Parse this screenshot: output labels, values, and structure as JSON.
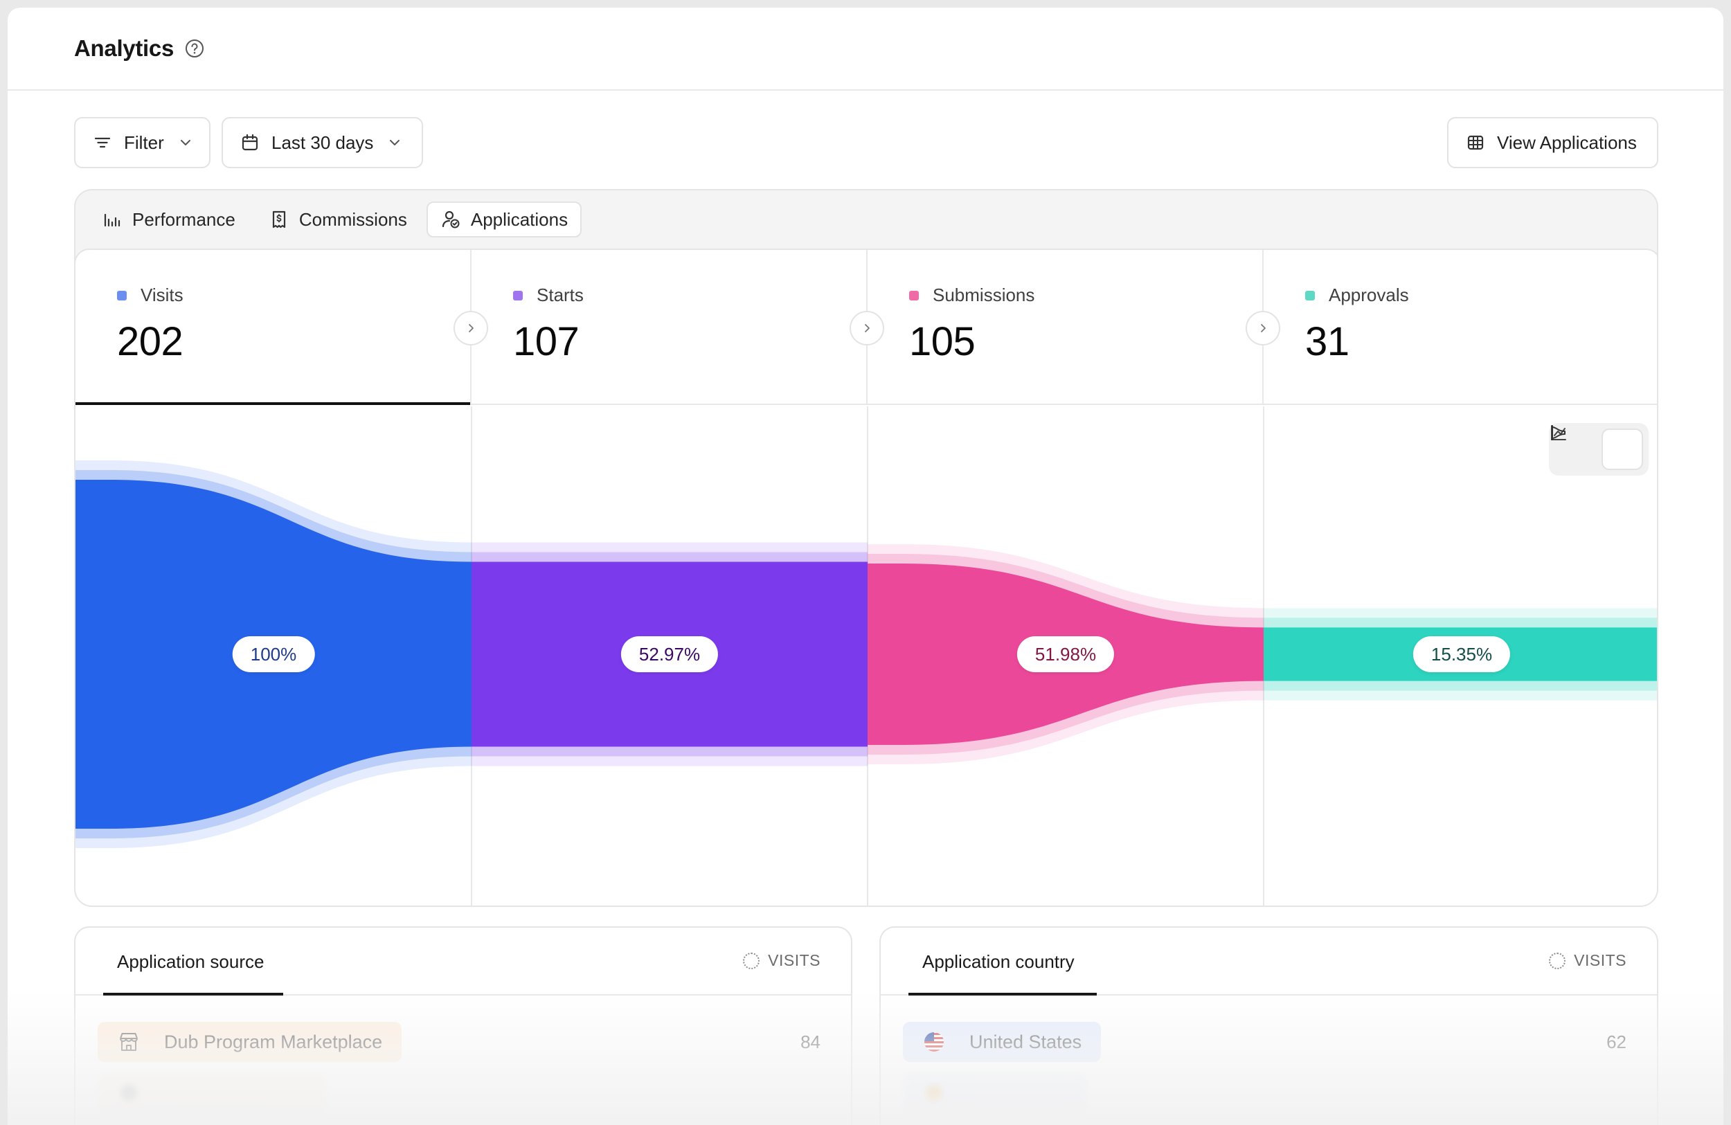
{
  "header": {
    "title": "Analytics"
  },
  "toolbar": {
    "filter_label": "Filter",
    "date_label": "Last 30 days",
    "view_label": "View Applications"
  },
  "tabs": [
    {
      "label": "Performance",
      "icon": "bar-chart-icon"
    },
    {
      "label": "Commissions",
      "icon": "receipt-dollar-icon"
    },
    {
      "label": "Applications",
      "icon": "user-check-icon",
      "active": true
    }
  ],
  "metrics": [
    {
      "label": "Visits",
      "value": "202",
      "color": "#6b8ef0"
    },
    {
      "label": "Starts",
      "value": "107",
      "color": "#a073ef"
    },
    {
      "label": "Submissions",
      "value": "105",
      "color": "#f06aa8"
    },
    {
      "label": "Approvals",
      "value": "31",
      "color": "#5fd9c3"
    }
  ],
  "funnel": {
    "stages": [
      {
        "percent": "100%",
        "value": 1.0,
        "color": "#2563eb",
        "text_color": "#1e3a8a"
      },
      {
        "percent": "52.97%",
        "value": 0.5297,
        "color": "#7c3aed",
        "text_color": "#3b0764"
      },
      {
        "percent": "51.98%",
        "value": 0.5198,
        "color": "#ec4899",
        "text_color": "#831843"
      },
      {
        "percent": "15.35%",
        "value": 0.1535,
        "color": "#2dd4bf",
        "text_color": "#134e4a"
      }
    ]
  },
  "source_card": {
    "title": "Application source",
    "metric": "VISITS",
    "rows": [
      {
        "label": "Dub Program Marketplace",
        "value": "84",
        "icon": "store-icon"
      }
    ]
  },
  "country_card": {
    "title": "Application country",
    "metric": "VISITS",
    "rows": [
      {
        "label": "United States",
        "value": "62",
        "icon": "us-flag-icon"
      }
    ]
  }
}
